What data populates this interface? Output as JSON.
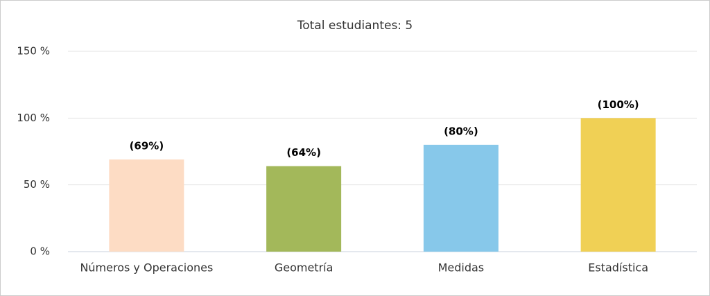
{
  "chart_data": {
    "type": "bar",
    "title": "Total estudiantes: 5",
    "categories": [
      "Números y Operaciones",
      "Geometría",
      "Medidas",
      "Estadística"
    ],
    "values": [
      69,
      64,
      80,
      100
    ],
    "value_labels": [
      "(69%)",
      "(64%)",
      "(80%)",
      "(100%)"
    ],
    "colors": [
      "#fddcc4",
      "#a3b85a",
      "#87c8ea",
      "#f0d055"
    ],
    "ylim": [
      0,
      150
    ],
    "yticks": [
      {
        "value": 0,
        "label": "0 %"
      },
      {
        "value": 50,
        "label": "50 %"
      },
      {
        "value": 100,
        "label": "100 %"
      },
      {
        "value": 150,
        "label": "150 %"
      }
    ],
    "grid": true
  }
}
